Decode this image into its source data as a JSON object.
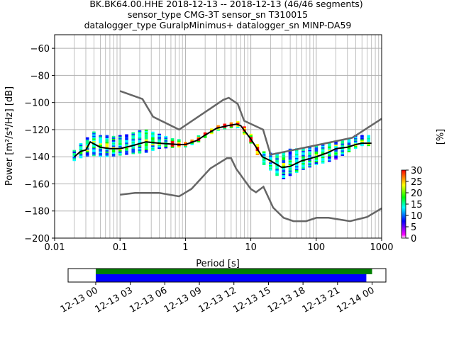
{
  "title": {
    "line1": "BK.BK64.00.HHE   2018-12-13 -- 2018-12-13  (46/46 segments)",
    "line2": "sensor_type CMG-3T sensor_sn T310015",
    "line3": "datalogger_type GuralpMinimus+ datalogger_sn MINP-DA59"
  },
  "chart_data": [
    {
      "type": "heatmap",
      "xlabel": "Period [s]",
      "ylabel": "Power [m²/s⁴/Hz] [dB]",
      "xscale": "log",
      "xlim": [
        0.01,
        1000
      ],
      "ylim": [
        -200,
        -50
      ],
      "xticks": [
        0.01,
        0.1,
        1,
        10,
        100,
        1000
      ],
      "xtick_labels": [
        "0.01",
        "0.1",
        "1",
        "10",
        "100",
        "1000"
      ],
      "yticks": [
        -200,
        -180,
        -160,
        -140,
        -120,
        -100,
        -80,
        -60
      ],
      "ytick_labels": [
        "−200",
        "−180",
        "−160",
        "−140",
        "−120",
        "−100",
        "−80",
        "−60"
      ],
      "grid": true,
      "noise_models": {
        "NHNM": {
          "period": [
            0.1,
            0.22,
            0.32,
            0.8,
            3.8,
            4.6,
            6.3,
            7.9,
            15.4,
            20,
            354.8,
            1000
          ],
          "power": [
            -91.5,
            -97.4,
            -110.5,
            -120,
            -98,
            -96.5,
            -101,
            -113.5,
            -120,
            -138.5,
            -126,
            -112
          ]
        },
        "NLNM": {
          "period": [
            0.1,
            0.17,
            0.4,
            0.8,
            1.24,
            2.4,
            4.3,
            5,
            6,
            10,
            12,
            15.6,
            21.9,
            31.6,
            45,
            70,
            101,
            154,
            328,
            600,
            1000
          ],
          "power": [
            -168,
            -166.7,
            -166.7,
            -169.2,
            -163.7,
            -148.6,
            -141.1,
            -141.1,
            -149,
            -163.8,
            -166.2,
            -162.1,
            -177.5,
            -185,
            -187.5,
            -187.5,
            -185,
            -185,
            -187.5,
            -184.4,
            -178
          ]
        }
      },
      "mean": {
        "period": [
          0.02,
          0.025,
          0.03,
          0.035,
          0.05,
          0.07,
          0.1,
          0.15,
          0.25,
          0.4,
          0.8,
          1,
          1.5,
          2,
          3,
          4.5,
          6,
          7,
          10,
          15,
          20,
          30,
          40,
          60,
          100,
          150,
          200,
          300,
          400,
          500,
          700
        ],
        "power": [
          -140,
          -136,
          -135,
          -129,
          -133,
          -134,
          -134,
          -132,
          -129,
          -130,
          -131,
          -131,
          -128,
          -124,
          -119,
          -117,
          -116,
          -117,
          -127,
          -140,
          -143,
          -148,
          -147,
          -143,
          -140,
          -137,
          -134,
          -133,
          -131,
          -130,
          -130
        ]
      },
      "density_band": {
        "period": [
          0.02,
          0.025,
          0.03,
          0.035,
          0.05,
          0.07,
          0.1,
          0.15,
          0.25,
          0.4,
          0.8,
          1,
          1.5,
          2,
          3,
          4.5,
          6,
          7,
          10,
          15,
          20,
          30,
          40,
          60,
          100,
          150,
          200,
          300,
          400,
          500,
          700
        ],
        "upper": [
          -135,
          -131,
          -129,
          -121,
          -124,
          -125,
          -124,
          -123,
          -120,
          -124,
          -128,
          -129,
          -126,
          -122,
          -117,
          -115,
          -114,
          -115,
          -124,
          -136,
          -138,
          -137,
          -135,
          -134,
          -132,
          -130,
          -129,
          -127,
          -125,
          -124,
          -124
        ],
        "lower": [
          -143,
          -141,
          -140,
          -139,
          -140,
          -140,
          -139,
          -138,
          -137,
          -134,
          -133,
          -133,
          -130,
          -126,
          -121,
          -119,
          -118,
          -120,
          -130,
          -145,
          -150,
          -157,
          -154,
          -150,
          -146,
          -144,
          -142,
          -137,
          -134,
          -132,
          -132
        ]
      },
      "colorbar": {
        "label": "[%]",
        "range": [
          0,
          30
        ],
        "ticks": [
          "0",
          "5",
          "10",
          "15",
          "20",
          "25",
          "30"
        ]
      }
    },
    {
      "type": "timeline",
      "tick_labels": [
        "12-13 00",
        "12-13 03",
        "12-13 06",
        "12-13 09",
        "12-13 12",
        "12-13 15",
        "12-13 18",
        "12-13 21",
        "12-14 00"
      ],
      "range_hours": [
        -2.4,
        25.2
      ],
      "bars": [
        {
          "name": "data coverage",
          "color": "#008000",
          "start_hour": 0,
          "end_hour": 24
        },
        {
          "name": "used segments",
          "color": "#0000ff",
          "start_hour": 0,
          "end_hour": 23.5
        }
      ]
    }
  ],
  "colors": {
    "noise_model": "#666666",
    "mean": "#000000",
    "grid": "#b0b0b0"
  }
}
